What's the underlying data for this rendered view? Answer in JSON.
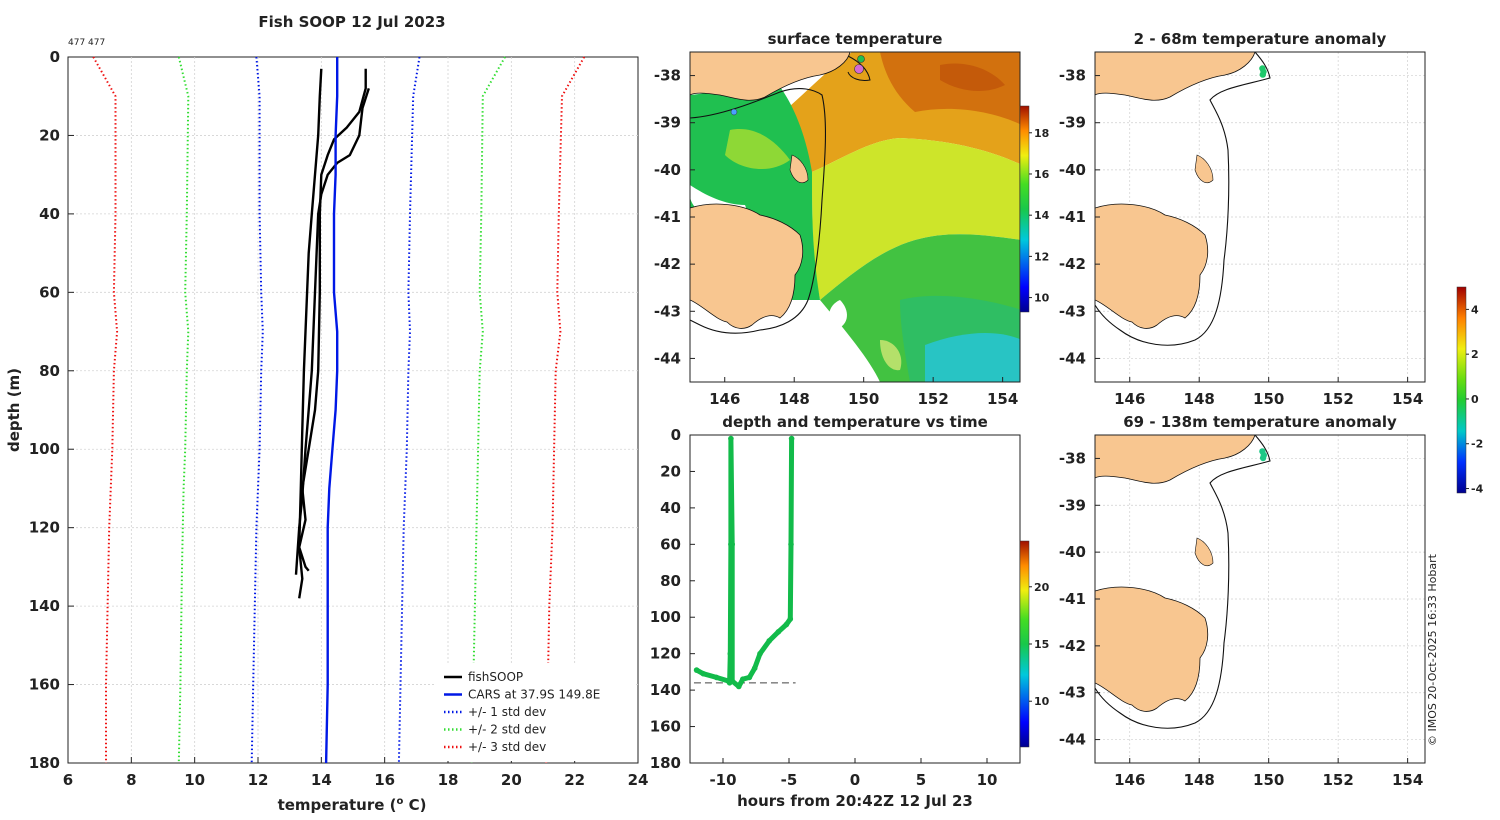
{
  "figure_title": "Fish SOOP 12 Jul 2023",
  "id_label": "477 477",
  "watermark": "© IMOS 20-Oct-2025 16:33 Hobart",
  "colors": {
    "land": "#f8c690",
    "grid": "#d0d0d0",
    "fishsoop": "#000000",
    "cars": "#0018e6",
    "std1": "#0018e6",
    "std2": "#33dd33",
    "std3": "#ee1111",
    "track": "#12bb4a"
  },
  "chart_data": [
    {
      "type": "line",
      "panel": "profile",
      "xlabel": "temperature (",
      "xlabel_sup": "o",
      "xlabel_end": " C)",
      "ylabel": "depth (m)",
      "xlim": [
        6,
        24
      ],
      "ylim": [
        0,
        180
      ],
      "xticks": [
        "6",
        "8",
        "10",
        "12",
        "14",
        "16",
        "18",
        "20",
        "22",
        "24"
      ],
      "yticks": [
        "0",
        "20",
        "40",
        "60",
        "80",
        "100",
        "120",
        "140",
        "160",
        "180"
      ],
      "legend": [
        {
          "label": "fishSOOP",
          "style": "solid",
          "color": "#000000"
        },
        {
          "label": "CARS at 37.9S 149.8E",
          "style": "solid",
          "color": "#0018e6"
        },
        {
          "label": "+/- 1 std dev",
          "style": "dotted",
          "color": "#0018e6"
        },
        {
          "label": "+/- 2 std dev",
          "style": "dotted",
          "color": "#33dd33"
        },
        {
          "label": "+/- 3 std dev",
          "style": "dotted",
          "color": "#ee1111"
        }
      ],
      "series": [
        {
          "name": "fishSOOP cast 1",
          "color": "#000000",
          "style": "solid",
          "points": [
            [
              14.0,
              3
            ],
            [
              13.95,
              10
            ],
            [
              13.9,
              20
            ],
            [
              13.8,
              30
            ],
            [
              13.7,
              40
            ],
            [
              13.6,
              50
            ],
            [
              13.55,
              60
            ],
            [
              13.5,
              70
            ],
            [
              13.45,
              80
            ],
            [
              13.4,
              95
            ],
            [
              13.35,
              110
            ],
            [
              13.3,
              125
            ],
            [
              13.4,
              133
            ],
            [
              13.3,
              138
            ]
          ]
        },
        {
          "name": "fishSOOP cast 2",
          "color": "#000000",
          "style": "solid",
          "points": [
            [
              15.4,
              3
            ],
            [
              15.4,
              8
            ],
            [
              15.2,
              14
            ],
            [
              14.8,
              18
            ],
            [
              14.4,
              21
            ],
            [
              14.2,
              25
            ],
            [
              14.0,
              30
            ],
            [
              13.95,
              40
            ],
            [
              13.95,
              60
            ],
            [
              13.9,
              80
            ],
            [
              13.8,
              90
            ],
            [
              13.6,
              100
            ],
            [
              13.4,
              110
            ],
            [
              13.5,
              118
            ],
            [
              13.3,
              125
            ],
            [
              13.5,
              130
            ],
            [
              13.6,
              131
            ]
          ]
        },
        {
          "name": "fishSOOP cast 3",
          "color": "#000000",
          "style": "solid",
          "points": [
            [
              15.5,
              8
            ],
            [
              15.3,
              13
            ],
            [
              15.2,
              20
            ],
            [
              14.9,
              25
            ],
            [
              14.5,
              27
            ],
            [
              14.2,
              30
            ],
            [
              14.0,
              35
            ],
            [
              13.9,
              40
            ],
            [
              13.8,
              60
            ],
            [
              13.7,
              80
            ],
            [
              13.6,
              90
            ],
            [
              13.5,
              100
            ],
            [
              13.4,
              112
            ],
            [
              13.3,
              120
            ],
            [
              13.2,
              132
            ]
          ]
        },
        {
          "name": "CARS mean",
          "color": "#0018e6",
          "style": "solid",
          "points": [
            [
              14.5,
              0
            ],
            [
              14.5,
              10
            ],
            [
              14.45,
              20
            ],
            [
              14.45,
              30
            ],
            [
              14.4,
              40
            ],
            [
              14.4,
              50
            ],
            [
              14.4,
              60
            ],
            [
              14.5,
              70
            ],
            [
              14.5,
              80
            ],
            [
              14.45,
              90
            ],
            [
              14.35,
              100
            ],
            [
              14.25,
              110
            ],
            [
              14.2,
              120
            ],
            [
              14.2,
              140
            ],
            [
              14.2,
              160
            ],
            [
              14.15,
              180
            ]
          ]
        },
        {
          "name": "-1 std",
          "color": "#0018e6",
          "style": "dotted",
          "points": [
            [
              11.95,
              0
            ],
            [
              12.05,
              10
            ],
            [
              12.05,
              40
            ],
            [
              12.1,
              60
            ],
            [
              12.15,
              70
            ],
            [
              12.1,
              80
            ],
            [
              12.05,
              100
            ],
            [
              12.0,
              110
            ],
            [
              11.95,
              120
            ],
            [
              11.9,
              140
            ],
            [
              11.85,
              160
            ],
            [
              11.8,
              180
            ]
          ]
        },
        {
          "name": "+1 std",
          "color": "#0018e6",
          "style": "dotted",
          "points": [
            [
              17.1,
              0
            ],
            [
              16.9,
              10
            ],
            [
              16.8,
              40
            ],
            [
              16.75,
              60
            ],
            [
              16.8,
              70
            ],
            [
              16.75,
              80
            ],
            [
              16.7,
              100
            ],
            [
              16.6,
              120
            ],
            [
              16.55,
              140
            ],
            [
              16.5,
              160
            ],
            [
              16.45,
              180
            ]
          ]
        },
        {
          "name": "-2 std",
          "color": "#33dd33",
          "style": "dotted",
          "points": [
            [
              9.5,
              0
            ],
            [
              9.8,
              10
            ],
            [
              9.75,
              40
            ],
            [
              9.7,
              60
            ],
            [
              9.8,
              70
            ],
            [
              9.75,
              80
            ],
            [
              9.7,
              100
            ],
            [
              9.65,
              110
            ],
            [
              9.6,
              130
            ],
            [
              9.55,
              160
            ],
            [
              9.5,
              180
            ]
          ]
        },
        {
          "name": "+2 std",
          "color": "#33dd33",
          "style": "dotted",
          "points": [
            [
              19.8,
              0
            ],
            [
              19.1,
              10
            ],
            [
              19.05,
              40
            ],
            [
              19.0,
              60
            ],
            [
              19.1,
              70
            ],
            [
              19.0,
              80
            ],
            [
              18.95,
              100
            ],
            [
              18.9,
              120
            ],
            [
              18.85,
              140
            ],
            [
              18.8,
              160
            ],
            [
              18.75,
              180
            ]
          ]
        },
        {
          "name": "-3 std",
          "color": "#ee1111",
          "style": "dotted",
          "points": [
            [
              6.8,
              0
            ],
            [
              7.5,
              10
            ],
            [
              7.5,
              40
            ],
            [
              7.45,
              60
            ],
            [
              7.55,
              70
            ],
            [
              7.45,
              80
            ],
            [
              7.4,
              100
            ],
            [
              7.3,
              120
            ],
            [
              7.25,
              140
            ],
            [
              7.2,
              160
            ],
            [
              7.2,
              180
            ]
          ]
        },
        {
          "name": "+3 std",
          "color": "#ee1111",
          "style": "dotted",
          "points": [
            [
              22.3,
              0
            ],
            [
              21.6,
              10
            ],
            [
              21.5,
              40
            ],
            [
              21.45,
              60
            ],
            [
              21.55,
              70
            ],
            [
              21.4,
              80
            ],
            [
              21.35,
              100
            ],
            [
              21.3,
              120
            ],
            [
              21.2,
              140
            ],
            [
              21.15,
              160
            ],
            [
              21.1,
              180
            ]
          ]
        }
      ]
    },
    {
      "type": "heatmap",
      "panel": "surface_map",
      "title": "surface temperature",
      "xlim": [
        145,
        154.5
      ],
      "ylim": [
        -44.5,
        -37.5
      ],
      "xticks": [
        "146",
        "148",
        "150",
        "152",
        "154"
      ],
      "yticks": [
        "-38",
        "-39",
        "-40",
        "-41",
        "-42",
        "-43",
        "-44"
      ],
      "colorbar_ticks": [
        "10",
        "12",
        "14",
        "16",
        "18"
      ],
      "colorbar_range": [
        9.3,
        19.3
      ]
    },
    {
      "type": "scatter",
      "panel": "depth_time",
      "title": "depth and temperature vs time",
      "xlabel": "hours from 20:42Z 12 Jul 23",
      "xlim": [
        -12.5,
        12.5
      ],
      "ylim": [
        0,
        180
      ],
      "xticks": [
        "-10",
        "-5",
        "0",
        "5",
        "10"
      ],
      "yticks": [
        "0",
        "20",
        "40",
        "60",
        "80",
        "100",
        "120",
        "140",
        "160",
        "180"
      ],
      "colorbar_ticks": [
        "10",
        "15",
        "20"
      ],
      "colorbar_range": [
        6,
        24
      ],
      "reference_depth": 136,
      "track": [
        [
          -12.0,
          129
        ],
        [
          -11.5,
          131
        ],
        [
          -10.5,
          133
        ],
        [
          -9.6,
          135
        ],
        [
          -9.5,
          136
        ],
        [
          -9.45,
          120
        ],
        [
          -9.4,
          60
        ],
        [
          -9.4,
          2
        ],
        [
          -9.3,
          60
        ],
        [
          -9.3,
          135
        ],
        [
          -8.8,
          138
        ],
        [
          -8.5,
          134
        ],
        [
          -8.0,
          133
        ],
        [
          -7.6,
          128
        ],
        [
          -7.2,
          120
        ],
        [
          -6.5,
          113
        ],
        [
          -5.8,
          108
        ],
        [
          -5.2,
          104
        ],
        [
          -4.9,
          101
        ],
        [
          -4.85,
          60
        ],
        [
          -4.8,
          2
        ]
      ]
    },
    {
      "type": "heatmap",
      "panel": "anomaly_2_68",
      "title": "2 - 68m temperature anomaly",
      "xlim": [
        145,
        154.5
      ],
      "ylim": [
        -44.5,
        -37.5
      ],
      "xticks": [
        "146",
        "148",
        "150",
        "152",
        "154"
      ],
      "yticks": [
        "-38",
        "-39",
        "-40",
        "-41",
        "-42",
        "-43",
        "-44"
      ],
      "points": [
        [
          149.82,
          -37.85
        ],
        [
          149.85,
          -37.92
        ],
        [
          149.83,
          -37.98
        ]
      ]
    },
    {
      "type": "heatmap",
      "panel": "anomaly_69_138",
      "title": "69 - 138m temperature anomaly",
      "xlim": [
        145,
        154.5
      ],
      "ylim": [
        -44.5,
        -37.5
      ],
      "xticks": [
        "146",
        "148",
        "150",
        "152",
        "154"
      ],
      "yticks": [
        "-38",
        "-39",
        "-40",
        "-41",
        "-42",
        "-43",
        "-44"
      ],
      "points": [
        [
          149.82,
          -37.85
        ],
        [
          149.86,
          -37.93
        ],
        [
          149.84,
          -37.99
        ]
      ],
      "colorbar_ticks": [
        "-4",
        "-2",
        "0",
        "2",
        "4"
      ],
      "colorbar_range": [
        -4.2,
        5.0
      ]
    }
  ]
}
